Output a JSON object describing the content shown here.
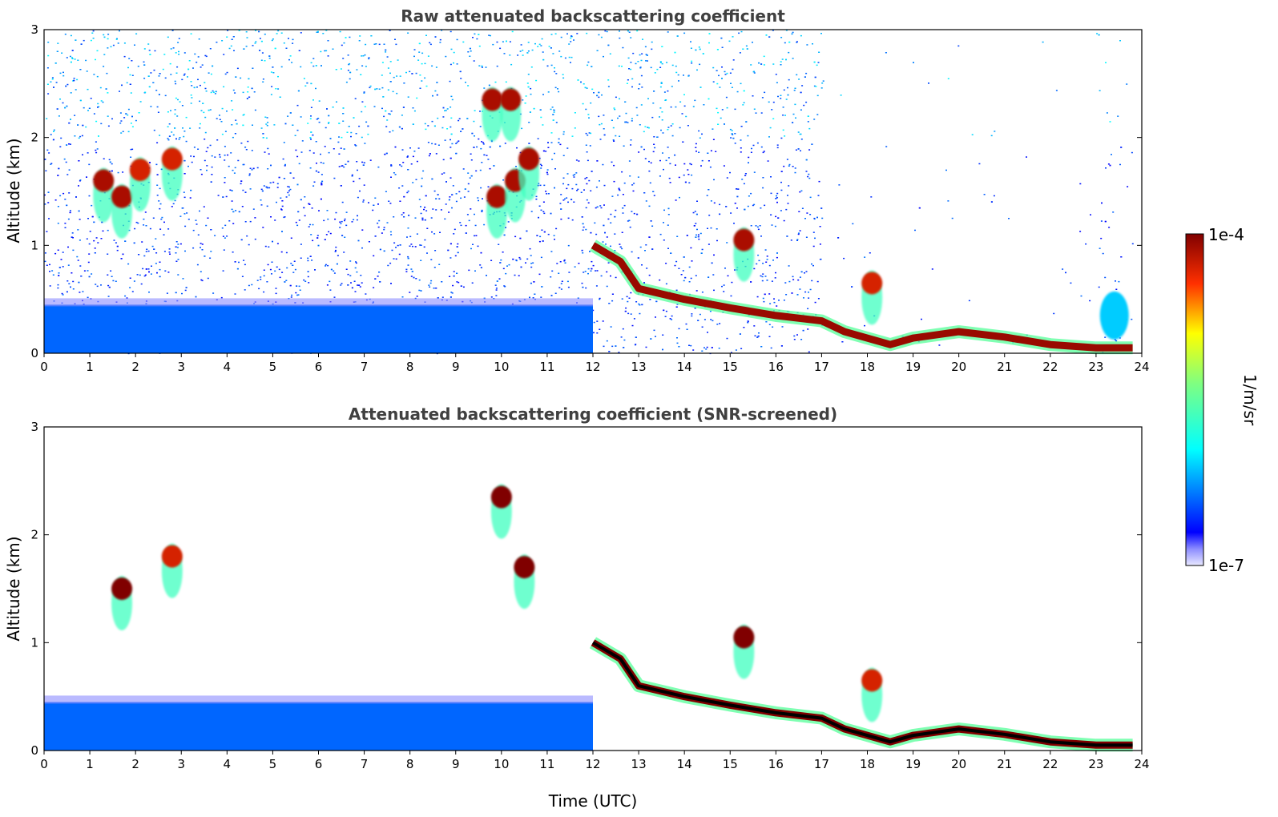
{
  "chart_data": [
    {
      "type": "heatmap",
      "title": "Raw attenuated backscattering coefficient",
      "xlabel": "",
      "ylabel": "Altitude (km)",
      "xlim": [
        0,
        24
      ],
      "ylim": [
        0,
        3
      ],
      "x_ticks": [
        "0",
        "1",
        "2",
        "3",
        "4",
        "5",
        "6",
        "7",
        "8",
        "9",
        "10",
        "11",
        "12",
        "13",
        "14",
        "15",
        "16",
        "17",
        "18",
        "19",
        "20",
        "21",
        "22",
        "23",
        "24"
      ],
      "y_ticks": [
        "0",
        "1",
        "2",
        "3"
      ],
      "colormap": "jet",
      "features": [
        {
          "kind": "boundary-layer",
          "start": 0,
          "end": 12,
          "top_km": 0.45,
          "level": 0.2
        },
        {
          "kind": "cloud",
          "time": 1.3,
          "altitude_km": 1.6,
          "level": 0.95
        },
        {
          "kind": "cloud",
          "time": 1.7,
          "altitude_km": 1.45,
          "level": 0.95
        },
        {
          "kind": "cloud",
          "time": 2.1,
          "altitude_km": 1.7,
          "level": 0.9
        },
        {
          "kind": "cloud",
          "time": 2.8,
          "altitude_km": 1.8,
          "level": 0.9
        },
        {
          "kind": "cloud",
          "time": 9.8,
          "altitude_km": 2.35,
          "level": 0.95
        },
        {
          "kind": "cloud",
          "time": 10.2,
          "altitude_km": 2.35,
          "level": 0.95
        },
        {
          "kind": "cloud",
          "time": 9.9,
          "altitude_km": 1.45,
          "level": 0.95
        },
        {
          "kind": "cloud",
          "time": 10.3,
          "altitude_km": 1.6,
          "level": 0.95
        },
        {
          "kind": "cloud",
          "time": 10.6,
          "altitude_km": 1.8,
          "level": 0.95
        },
        {
          "kind": "cloud",
          "time": 15.3,
          "altitude_km": 1.05,
          "level": 0.95
        },
        {
          "kind": "cloud",
          "time": 18.1,
          "altitude_km": 0.65,
          "level": 0.9
        },
        {
          "kind": "cloud-base-layer",
          "points": [
            [
              12.0,
              1.0
            ],
            [
              12.6,
              0.85
            ],
            [
              13.0,
              0.6
            ],
            [
              14.0,
              0.5
            ],
            [
              15.0,
              0.42
            ],
            [
              16.0,
              0.35
            ],
            [
              17.0,
              0.3
            ],
            [
              17.5,
              0.2
            ],
            [
              18.5,
              0.08
            ],
            [
              19.0,
              0.14
            ],
            [
              20.0,
              0.2
            ],
            [
              21.0,
              0.15
            ],
            [
              22.0,
              0.08
            ],
            [
              23.0,
              0.05
            ],
            [
              23.8,
              0.05
            ]
          ],
          "level": 0.97
        },
        {
          "kind": "aerosol",
          "time": 23.4,
          "altitude_km": 0.35,
          "level": 0.3
        }
      ]
    },
    {
      "type": "heatmap",
      "title": "Attenuated backscattering coefficient (SNR-screened)",
      "xlabel": "Time (UTC)",
      "ylabel": "Altitude (km)",
      "xlim": [
        0,
        24
      ],
      "ylim": [
        0,
        3
      ],
      "x_ticks": [
        "0",
        "1",
        "2",
        "3",
        "4",
        "5",
        "6",
        "7",
        "8",
        "9",
        "10",
        "11",
        "12",
        "13",
        "14",
        "15",
        "16",
        "17",
        "18",
        "19",
        "20",
        "21",
        "22",
        "23",
        "24"
      ],
      "y_ticks": [
        "0",
        "1",
        "2",
        "3"
      ],
      "colormap": "jet",
      "features": [
        {
          "kind": "boundary-layer",
          "start": 0,
          "end": 12,
          "top_km": 0.45,
          "level": 0.2
        },
        {
          "kind": "cloud",
          "time": 1.7,
          "altitude_km": 1.5,
          "level": 1.0
        },
        {
          "kind": "cloud",
          "time": 2.8,
          "altitude_km": 1.8,
          "level": 0.9
        },
        {
          "kind": "cloud",
          "time": 10.0,
          "altitude_km": 2.35,
          "level": 1.0
        },
        {
          "kind": "cloud",
          "time": 10.5,
          "altitude_km": 1.7,
          "level": 1.0
        },
        {
          "kind": "cloud",
          "time": 15.3,
          "altitude_km": 1.05,
          "level": 1.0
        },
        {
          "kind": "cloud",
          "time": 18.1,
          "altitude_km": 0.65,
          "level": 0.9
        },
        {
          "kind": "cloud-base-layer",
          "points": [
            [
              12.0,
              1.0
            ],
            [
              12.6,
              0.85
            ],
            [
              13.0,
              0.6
            ],
            [
              14.0,
              0.5
            ],
            [
              15.0,
              0.42
            ],
            [
              16.0,
              0.35
            ],
            [
              17.0,
              0.3
            ],
            [
              17.5,
              0.2
            ],
            [
              18.5,
              0.08
            ],
            [
              19.0,
              0.14
            ],
            [
              20.0,
              0.2
            ],
            [
              21.0,
              0.15
            ],
            [
              22.0,
              0.08
            ],
            [
              23.0,
              0.05
            ],
            [
              23.8,
              0.05
            ]
          ],
          "level": 1.0
        }
      ]
    }
  ],
  "colorbar": {
    "label": "1/m/sr",
    "max_label": "1e-4",
    "min_label": "1e-7",
    "colormap": "jet"
  }
}
